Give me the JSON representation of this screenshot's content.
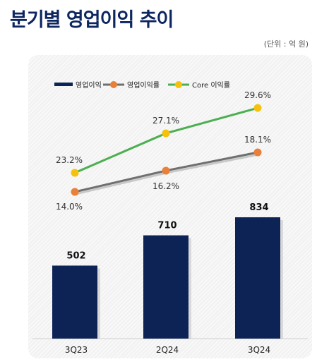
{
  "page": {
    "title": "분기별 영업이익 추이",
    "unit": "(단위 : 억 원)"
  },
  "chart_data": {
    "type": "bar",
    "categories": [
      "3Q23",
      "2Q24",
      "3Q24"
    ],
    "series": [
      {
        "name": "영업이익",
        "kind": "bar",
        "values": [
          502,
          710,
          834
        ],
        "labels": [
          "502",
          "710",
          "834"
        ],
        "color": "#0d2255"
      },
      {
        "name": "영업이익률",
        "kind": "line",
        "values": [
          14.0,
          16.2,
          18.1
        ],
        "labels": [
          "14.0%",
          "16.2%",
          "18.1%"
        ],
        "color": "#e8803a",
        "line_color": "#6f6f6f"
      },
      {
        "name": "Core 이익률",
        "kind": "line",
        "values": [
          23.2,
          27.1,
          29.6
        ],
        "labels": [
          "23.2%",
          "27.1%",
          "29.6%"
        ],
        "color": "#f4c20d",
        "line_color": "#4caf50"
      }
    ],
    "legend_position": "top-left",
    "grid": false
  }
}
